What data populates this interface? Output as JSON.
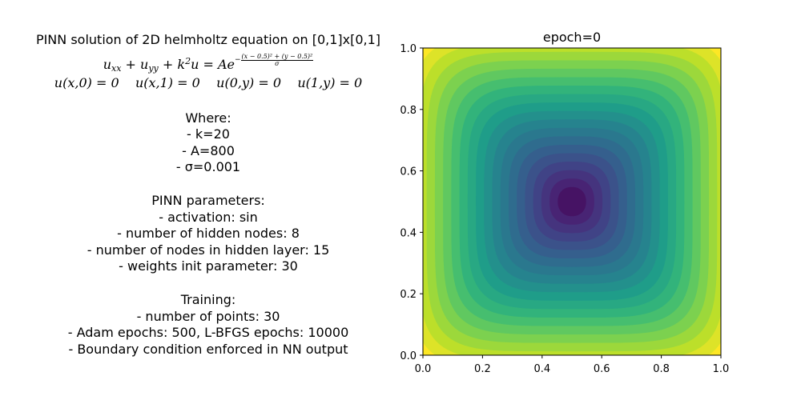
{
  "text_panel": {
    "title": "PINN solution of 2D helmholtz equation on [0,1]x[0,1]",
    "equation": {
      "lhs": "u_xx + u_yy + k^2 u = Ae^",
      "exponent_prefix": "−",
      "exponent_numerator": "(x − 0.5)² + (y − 0.5)²",
      "exponent_denominator": "σ"
    },
    "boundary_conditions": [
      "u(x,0) = 0",
      "u(x,1) = 0",
      "u(0,y) = 0",
      "u(1,y) = 0"
    ],
    "where_heading": "Where:",
    "where_items": [
      "- k=20",
      "- A=800",
      "- σ=0.001"
    ],
    "pinn_heading": "PINN parameters:",
    "pinn_items": [
      "- activation: sin",
      "- number of hidden nodes: 8",
      "- number of nodes in hidden layer: 15",
      "- weights init parameter: 30"
    ],
    "training_heading": "Training:",
    "training_items": [
      "- number of points: 30",
      "- Adam epochs: 500, L-BFGS epochs: 10000",
      "- Boundary condition enforced in NN output"
    ]
  },
  "chart_data": {
    "type": "heatmap",
    "subtype": "filled-contour",
    "title": "epoch=0",
    "xlabel": "",
    "ylabel": "",
    "xlim": [
      0.0,
      1.0
    ],
    "ylim": [
      0.0,
      1.0
    ],
    "xticks": [
      "0.0",
      "0.2",
      "0.4",
      "0.6",
      "0.8",
      "1.0"
    ],
    "yticks": [
      "0.0",
      "0.2",
      "0.4",
      "0.6",
      "0.8",
      "1.0"
    ],
    "colormap": "viridis",
    "contour_levels": 20,
    "field": "minimum at center (0.5, 0.5), rising to maximum at the boundary",
    "colors": {
      "low": "#440154",
      "high": "#fde725",
      "axes": "#000000"
    }
  }
}
